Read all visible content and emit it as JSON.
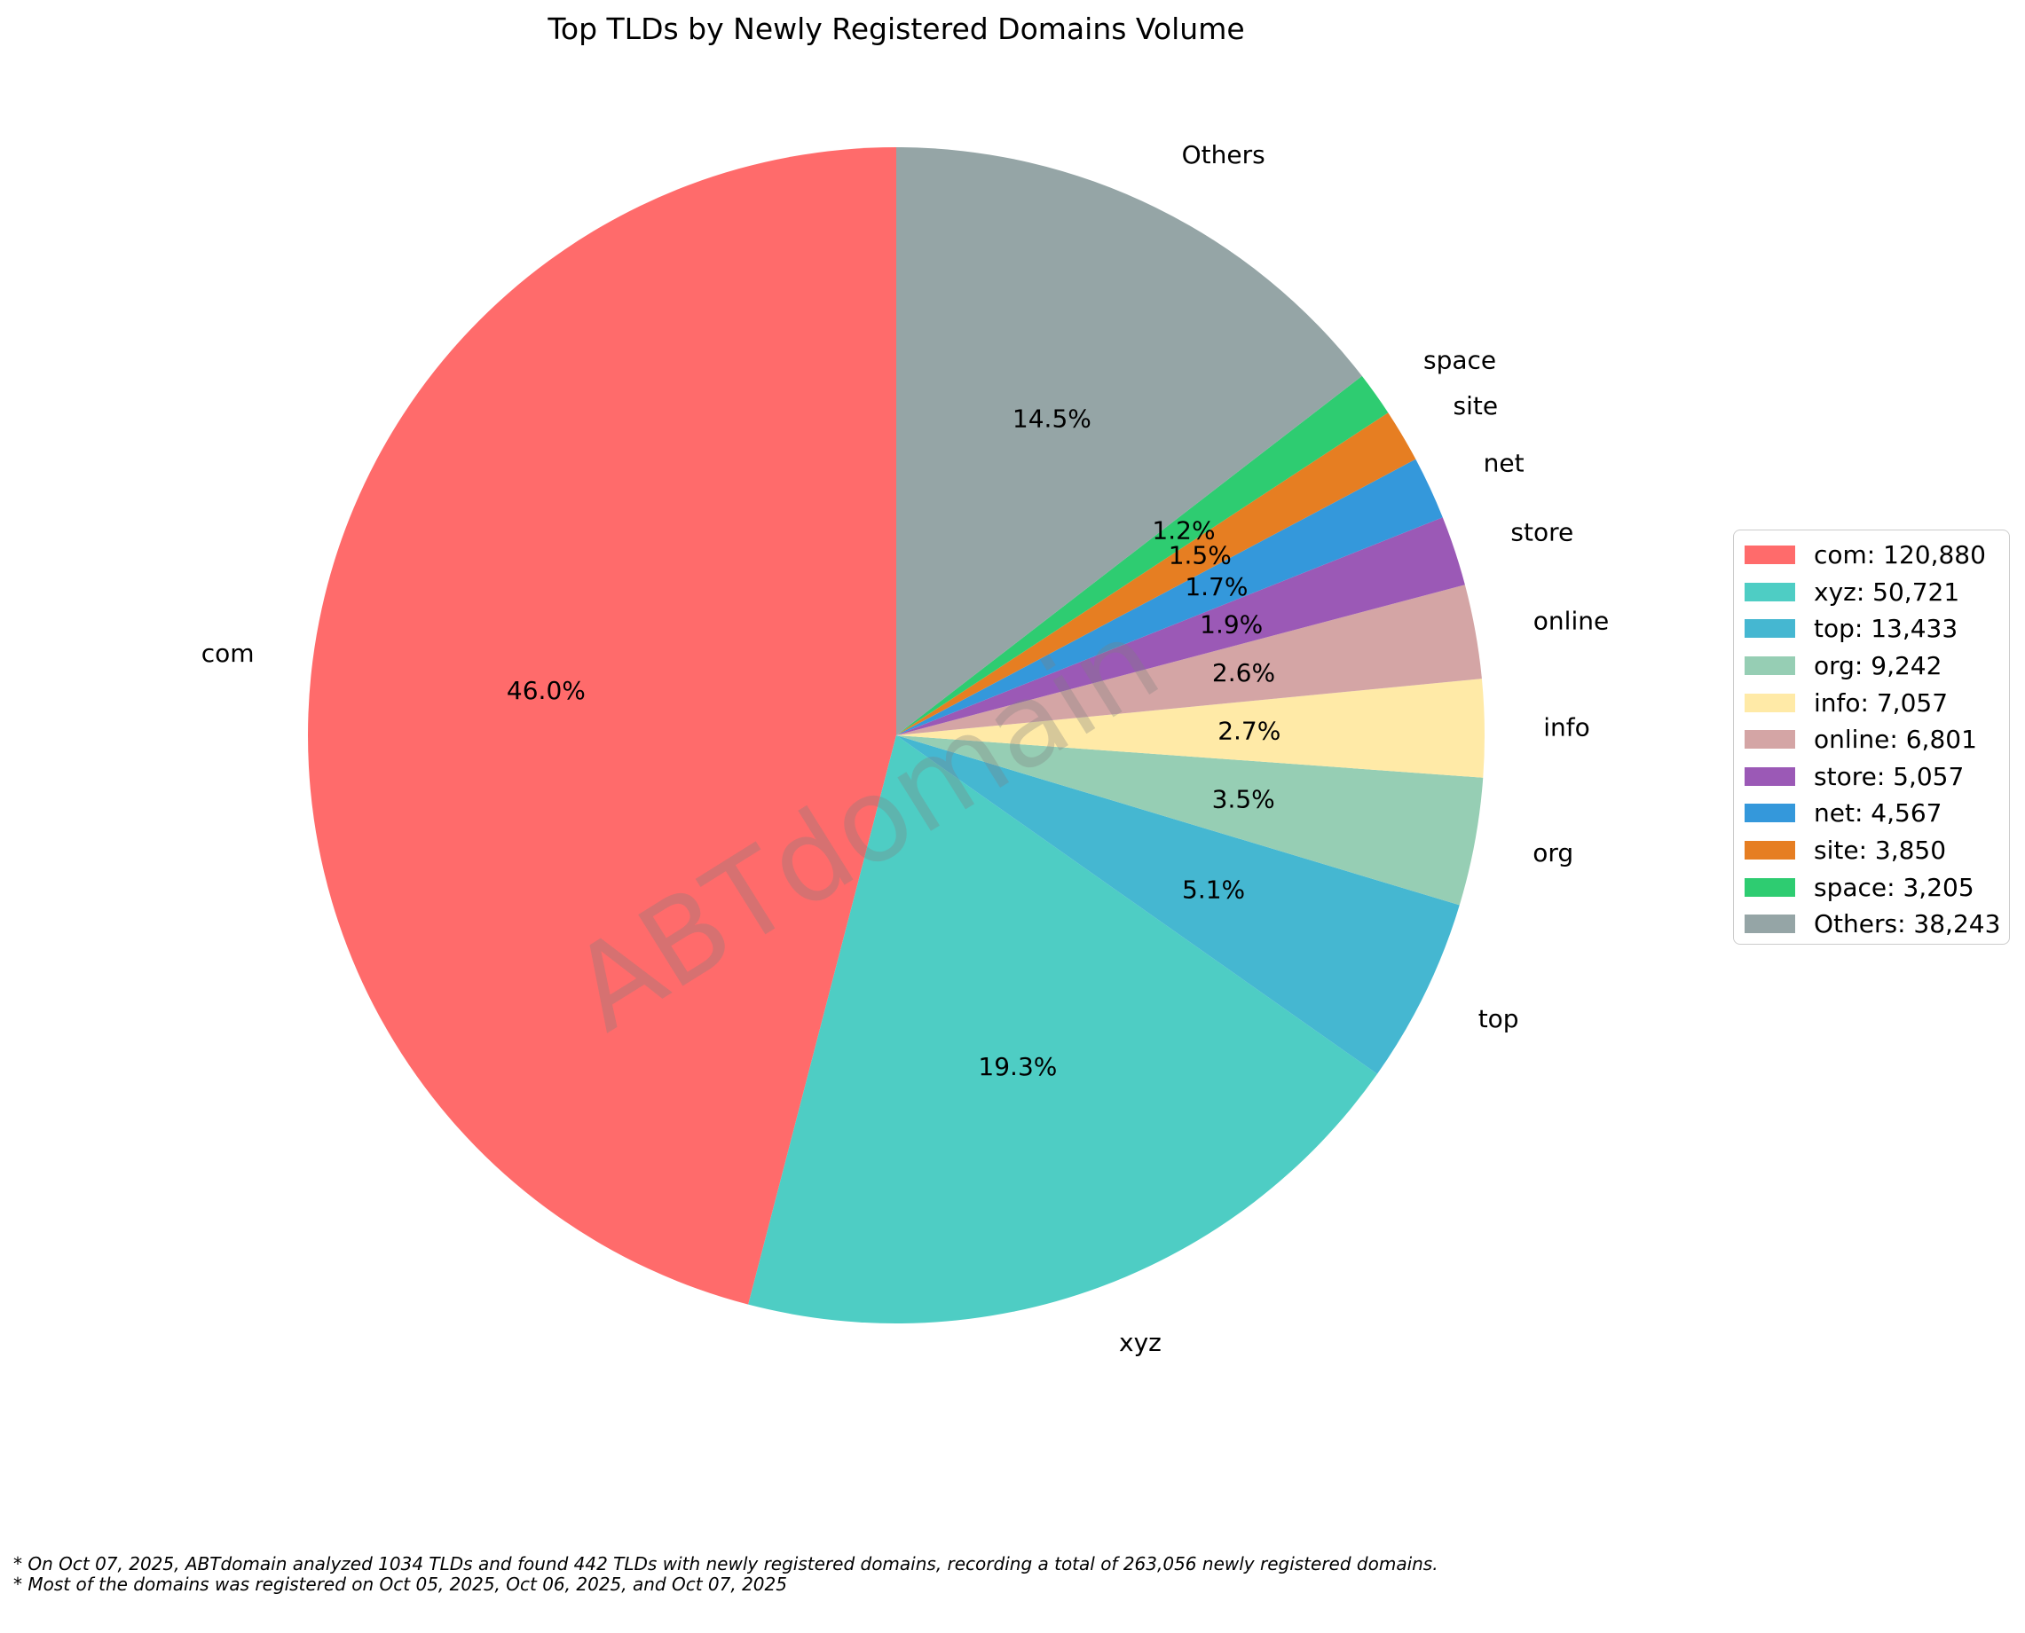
{
  "title": "Top TLDs by Newly Registered Domains Volume",
  "watermark": "ABTdomain",
  "footnotes": {
    "line1": "* On Oct 07, 2025, ABTdomain analyzed 1034 TLDs and found 442 TLDs with newly registered domains, recording a total of 263,056 newly registered domains.",
    "line2": "* Most of the domains was registered on Oct 05, 2025, Oct 06, 2025, and Oct 07, 2025"
  },
  "chart_data": {
    "type": "pie",
    "title": "Top TLDs by Newly Registered Domains Volume",
    "start_angle_deg": 90,
    "direction": "counterclockwise",
    "label_distance": 1.1,
    "pct_distance": 0.6,
    "legend_position": "center right",
    "total": 263056,
    "series": [
      {
        "label": "com",
        "value": 120880,
        "pct_label": "46.0%",
        "legend_label": "com: 120,880",
        "color": "#FF6B6B"
      },
      {
        "label": "xyz",
        "value": 50721,
        "pct_label": "19.3%",
        "legend_label": "xyz: 50,721",
        "color": "#4ECDC4"
      },
      {
        "label": "top",
        "value": 13433,
        "pct_label": "5.1%",
        "legend_label": "top: 13,433",
        "color": "#45B7D1"
      },
      {
        "label": "org",
        "value": 9242,
        "pct_label": "3.5%",
        "legend_label": "org: 9,242",
        "color": "#96CEB4"
      },
      {
        "label": "info",
        "value": 7057,
        "pct_label": "2.7%",
        "legend_label": "info: 7,057",
        "color": "#FFEAA7"
      },
      {
        "label": "online",
        "value": 6801,
        "pct_label": "2.6%",
        "legend_label": "online: 6,801",
        "color": "#D4A5A5"
      },
      {
        "label": "store",
        "value": 5057,
        "pct_label": "1.9%",
        "legend_label": "store: 5,057",
        "color": "#9B59B6"
      },
      {
        "label": "net",
        "value": 4567,
        "pct_label": "1.7%",
        "legend_label": "net: 4,567",
        "color": "#3498DB"
      },
      {
        "label": "site",
        "value": 3850,
        "pct_label": "1.5%",
        "legend_label": "site: 3,850",
        "color": "#E67E22"
      },
      {
        "label": "space",
        "value": 3205,
        "pct_label": "1.2%",
        "legend_label": "space: 3,205",
        "color": "#2ECC71"
      },
      {
        "label": "Others",
        "value": 38243,
        "pct_label": "14.5%",
        "legend_label": "Others: 38,243",
        "color": "#95A5A6"
      }
    ]
  }
}
